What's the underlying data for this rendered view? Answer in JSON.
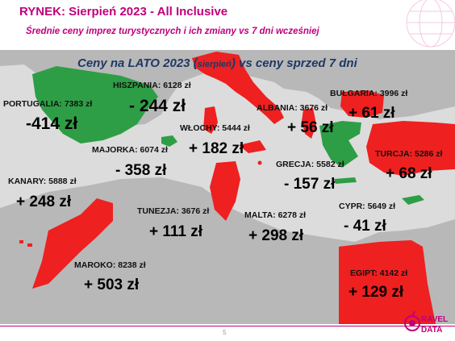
{
  "header": {
    "title": "RYNEK: Sierpień 2023 - All Inclusive",
    "subtitle": "Średnie ceny imprez turystycznych i ich zmiany vs 7 dni wcześniej"
  },
  "page_number": "5",
  "logo": {
    "line1": "RAVEL",
    "line2": "DATA"
  },
  "chart_data": {
    "type": "map",
    "title_main": "Ceny na LATO 2023 (",
    "title_small": "sierpień",
    "title_tail": ") vs ceny sprzed 7 dni",
    "colors": {
      "increase": "#ee2020",
      "decrease": "#2e9e46",
      "land": "#b3b3b3",
      "sea": "#dcdcdc"
    },
    "destinations": [
      {
        "label": "HISZPANIA: 6128 zł",
        "price": 6128,
        "change_label": "- 244 zł",
        "change": -244
      },
      {
        "label": "PORTUGALIA: 7383 zł",
        "price": 7383,
        "change_label": "-414 zł",
        "change": -414
      },
      {
        "label": "ALBANIA: 3676 zł",
        "price": 3676,
        "change_label": "+ 56 zł",
        "change": 56
      },
      {
        "label": "BUŁGARIA: 3996 zł",
        "price": 3996,
        "change_label": "+ 61 zł",
        "change": 61
      },
      {
        "label": "WŁOCHY: 5444 zł",
        "price": 5444,
        "change_label": "+ 182 zł",
        "change": 182
      },
      {
        "label": "MAJORKA: 6074 zł",
        "price": 6074,
        "change_label": "- 358 zł",
        "change": -358
      },
      {
        "label": "TURCJA: 5286 zł",
        "price": 5286,
        "change_label": "+ 68 zł",
        "change": 68
      },
      {
        "label": "GRECJA: 5582 zł",
        "price": 5582,
        "change_label": "- 157 zł",
        "change": -157
      },
      {
        "label": "KANARY: 5888 zł",
        "price": 5888,
        "change_label": "+ 248 zł",
        "change": 248
      },
      {
        "label": "CYPR: 5649 zł",
        "price": 5649,
        "change_label": "- 41 zł",
        "change": -41
      },
      {
        "label": "TUNEZJA: 3676 zł",
        "price": 3676,
        "change_label": "+ 111 zł",
        "change": 111
      },
      {
        "label": "MALTA: 6278 zł",
        "price": 6278,
        "change_label": "+ 298 zł",
        "change": 298
      },
      {
        "label": "MAROKO: 8238 zł",
        "price": 8238,
        "change_label": "+ 503 zł",
        "change": 503
      },
      {
        "label": "EGIPT: 4142 zł",
        "price": 4142,
        "change_label": "+ 129 zł",
        "change": 129
      }
    ]
  }
}
